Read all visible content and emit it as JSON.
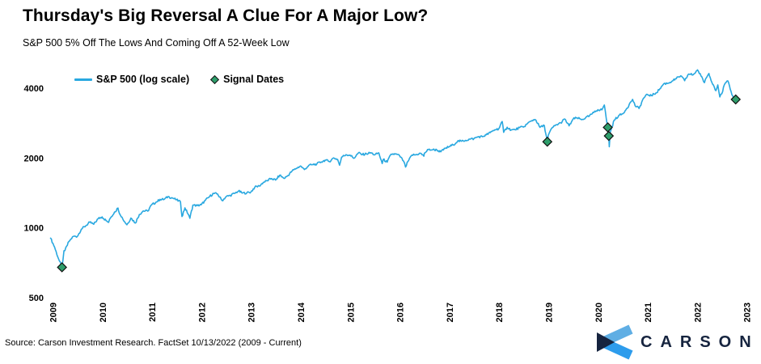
{
  "header": {
    "title": "Thursday's Big Reversal A Clue For A Major Low?",
    "subtitle": "S&P 500 5% Off The Lows And Coming Off A 52-Week Low"
  },
  "footer": {
    "source": "Source: Carson Investment Research. FactSet 10/13/2022 (2009 - Current)",
    "brand": "CARSON"
  },
  "colors": {
    "line": "#29A8E0",
    "signal_fill": "#2E9E6B",
    "signal_stroke": "#111111",
    "navy": "#16243F",
    "logo_top_arm": "#5FAEE4",
    "logo_bottom_arm": "#2D9CEC"
  },
  "chart_data": {
    "type": "line",
    "title": "Thursday's Big Reversal A Clue For A Major Low?",
    "subtitle": "S&P 500 5% Off The Lows And Coming Off A 52-Week Low",
    "legend": [
      "S&P 500 (log scale)",
      "Signal Dates"
    ],
    "legend_position": "top-left",
    "grid": false,
    "x_axis": {
      "label": "",
      "ticks": [
        2009,
        2010,
        2011,
        2012,
        2013,
        2014,
        2015,
        2016,
        2017,
        2018,
        2019,
        2020,
        2021,
        2022,
        2023
      ],
      "range": [
        2008.95,
        2023.2
      ]
    },
    "y_axis": {
      "label": "",
      "scale": "log",
      "ticks": [
        4000,
        2000,
        1000,
        500
      ],
      "range": [
        480,
        5200
      ]
    },
    "series": [
      {
        "name": "S&P 500 (log scale)",
        "points": [
          [
            2008.96,
            903
          ],
          [
            2009.04,
            826
          ],
          [
            2009.12,
            735
          ],
          [
            2009.19,
            676
          ],
          [
            2009.23,
            797
          ],
          [
            2009.25,
            798
          ],
          [
            2009.33,
            873
          ],
          [
            2009.42,
            919
          ],
          [
            2009.5,
            919
          ],
          [
            2009.58,
            987
          ],
          [
            2009.67,
            1021
          ],
          [
            2009.75,
            1057
          ],
          [
            2009.83,
            1036
          ],
          [
            2009.92,
            1096
          ],
          [
            2010.0,
            1115
          ],
          [
            2010.08,
            1074
          ],
          [
            2010.13,
            1056
          ],
          [
            2010.17,
            1104
          ],
          [
            2010.25,
            1169
          ],
          [
            2010.32,
            1217
          ],
          [
            2010.33,
            1187
          ],
          [
            2010.42,
            1089
          ],
          [
            2010.5,
            1031
          ],
          [
            2010.58,
            1102
          ],
          [
            2010.67,
            1049
          ],
          [
            2010.75,
            1141
          ],
          [
            2010.83,
            1183
          ],
          [
            2010.92,
            1181
          ],
          [
            2011.0,
            1258
          ],
          [
            2011.08,
            1286
          ],
          [
            2011.17,
            1327
          ],
          [
            2011.25,
            1326
          ],
          [
            2011.33,
            1364
          ],
          [
            2011.42,
            1345
          ],
          [
            2011.5,
            1321
          ],
          [
            2011.58,
            1292
          ],
          [
            2011.61,
            1119
          ],
          [
            2011.67,
            1219
          ],
          [
            2011.75,
            1131
          ],
          [
            2011.77,
            1099
          ],
          [
            2011.83,
            1253
          ],
          [
            2011.92,
            1247
          ],
          [
            2012.0,
            1258
          ],
          [
            2012.08,
            1312
          ],
          [
            2012.17,
            1366
          ],
          [
            2012.25,
            1408
          ],
          [
            2012.33,
            1398
          ],
          [
            2012.42,
            1310
          ],
          [
            2012.5,
            1362
          ],
          [
            2012.58,
            1379
          ],
          [
            2012.67,
            1407
          ],
          [
            2012.75,
            1441
          ],
          [
            2012.83,
            1412
          ],
          [
            2012.92,
            1416
          ],
          [
            2013.0,
            1426
          ],
          [
            2013.08,
            1498
          ],
          [
            2013.17,
            1515
          ],
          [
            2013.25,
            1569
          ],
          [
            2013.33,
            1598
          ],
          [
            2013.42,
            1631
          ],
          [
            2013.5,
            1606
          ],
          [
            2013.58,
            1686
          ],
          [
            2013.67,
            1633
          ],
          [
            2013.75,
            1682
          ],
          [
            2013.83,
            1757
          ],
          [
            2013.92,
            1806
          ],
          [
            2014.0,
            1848
          ],
          [
            2014.08,
            1783
          ],
          [
            2014.17,
            1859
          ],
          [
            2014.25,
            1872
          ],
          [
            2014.33,
            1884
          ],
          [
            2014.42,
            1924
          ],
          [
            2014.5,
            1960
          ],
          [
            2014.58,
            1931
          ],
          [
            2014.67,
            2003
          ],
          [
            2014.75,
            1972
          ],
          [
            2014.79,
            1862
          ],
          [
            2014.83,
            2018
          ],
          [
            2014.92,
            2068
          ],
          [
            2015.0,
            2059
          ],
          [
            2015.08,
            1995
          ],
          [
            2015.17,
            2105
          ],
          [
            2015.25,
            2068
          ],
          [
            2015.33,
            2086
          ],
          [
            2015.42,
            2107
          ],
          [
            2015.5,
            2063
          ],
          [
            2015.58,
            2104
          ],
          [
            2015.65,
            1893
          ],
          [
            2015.67,
            1972
          ],
          [
            2015.75,
            1920
          ],
          [
            2015.83,
            2079
          ],
          [
            2015.92,
            2080
          ],
          [
            2016.0,
            2044
          ],
          [
            2016.08,
            1940
          ],
          [
            2016.12,
            1829
          ],
          [
            2016.17,
            1932
          ],
          [
            2016.25,
            2060
          ],
          [
            2016.33,
            2065
          ],
          [
            2016.42,
            2097
          ],
          [
            2016.49,
            2037
          ],
          [
            2016.5,
            2099
          ],
          [
            2016.58,
            2174
          ],
          [
            2016.67,
            2171
          ],
          [
            2016.75,
            2168
          ],
          [
            2016.83,
            2126
          ],
          [
            2016.92,
            2199
          ],
          [
            2017.0,
            2239
          ],
          [
            2017.08,
            2279
          ],
          [
            2017.17,
            2364
          ],
          [
            2017.25,
            2363
          ],
          [
            2017.33,
            2384
          ],
          [
            2017.42,
            2412
          ],
          [
            2017.5,
            2423
          ],
          [
            2017.58,
            2470
          ],
          [
            2017.67,
            2472
          ],
          [
            2017.75,
            2519
          ],
          [
            2017.83,
            2575
          ],
          [
            2017.92,
            2648
          ],
          [
            2018.0,
            2674
          ],
          [
            2018.07,
            2873
          ],
          [
            2018.1,
            2581
          ],
          [
            2018.17,
            2714
          ],
          [
            2018.25,
            2641
          ],
          [
            2018.33,
            2648
          ],
          [
            2018.42,
            2705
          ],
          [
            2018.5,
            2718
          ],
          [
            2018.58,
            2816
          ],
          [
            2018.67,
            2902
          ],
          [
            2018.73,
            2931
          ],
          [
            2018.75,
            2914
          ],
          [
            2018.83,
            2712
          ],
          [
            2018.92,
            2760
          ],
          [
            2018.98,
            2351
          ],
          [
            2019.0,
            2507
          ],
          [
            2019.08,
            2704
          ],
          [
            2019.17,
            2784
          ],
          [
            2019.25,
            2834
          ],
          [
            2019.33,
            2946
          ],
          [
            2019.42,
            2752
          ],
          [
            2019.5,
            2942
          ],
          [
            2019.58,
            2980
          ],
          [
            2019.67,
            2926
          ],
          [
            2019.75,
            2977
          ],
          [
            2019.83,
            3038
          ],
          [
            2019.92,
            3141
          ],
          [
            2020.0,
            3231
          ],
          [
            2020.08,
            3226
          ],
          [
            2020.13,
            3386
          ],
          [
            2020.17,
            2954
          ],
          [
            2020.2,
            2711
          ],
          [
            2020.22,
            2490
          ],
          [
            2020.23,
            2237
          ],
          [
            2020.25,
            2585
          ],
          [
            2020.33,
            2912
          ],
          [
            2020.42,
            3044
          ],
          [
            2020.5,
            3100
          ],
          [
            2020.58,
            3271
          ],
          [
            2020.67,
            3500
          ],
          [
            2020.7,
            3581
          ],
          [
            2020.75,
            3363
          ],
          [
            2020.83,
            3270
          ],
          [
            2020.92,
            3622
          ],
          [
            2021.0,
            3756
          ],
          [
            2021.08,
            3714
          ],
          [
            2021.17,
            3811
          ],
          [
            2021.25,
            3973
          ],
          [
            2021.33,
            4181
          ],
          [
            2021.42,
            4204
          ],
          [
            2021.5,
            4298
          ],
          [
            2021.58,
            4395
          ],
          [
            2021.67,
            4523
          ],
          [
            2021.75,
            4308
          ],
          [
            2021.83,
            4605
          ],
          [
            2021.92,
            4567
          ],
          [
            2022.0,
            4766
          ],
          [
            2022.01,
            4797
          ],
          [
            2022.08,
            4516
          ],
          [
            2022.15,
            4226
          ],
          [
            2022.17,
            4374
          ],
          [
            2022.24,
            4631
          ],
          [
            2022.25,
            4530
          ],
          [
            2022.33,
            4132
          ],
          [
            2022.38,
            3901
          ],
          [
            2022.42,
            4132
          ],
          [
            2022.46,
            3667
          ],
          [
            2022.5,
            3785
          ],
          [
            2022.55,
            4130
          ],
          [
            2022.62,
            4305
          ],
          [
            2022.67,
            3955
          ],
          [
            2022.74,
            3586
          ],
          [
            2022.78,
            3577
          ]
        ]
      }
    ],
    "signals": {
      "name": "Signal Dates",
      "points": [
        [
          2009.19,
          676
        ],
        [
          2018.98,
          2351
        ],
        [
          2020.2,
          2711
        ],
        [
          2020.22,
          2490
        ],
        [
          2022.78,
          3577
        ]
      ]
    }
  }
}
